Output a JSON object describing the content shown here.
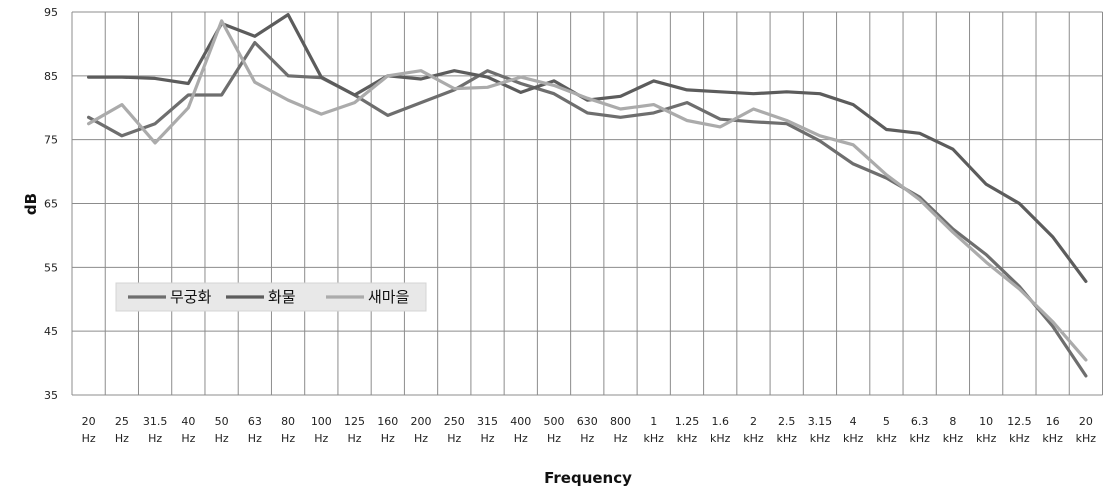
{
  "chart_data": {
    "type": "line",
    "xlabel": "Frequency",
    "ylabel": "dB",
    "ylim": [
      35,
      95
    ],
    "yticks": [
      35,
      45,
      55,
      65,
      75,
      85,
      95
    ],
    "grid": true,
    "legend_position": "lower-left",
    "categories": [
      [
        "20",
        "Hz"
      ],
      [
        "25",
        "Hz"
      ],
      [
        "31.5",
        "Hz"
      ],
      [
        "40",
        "Hz"
      ],
      [
        "50",
        "Hz"
      ],
      [
        "63",
        "Hz"
      ],
      [
        "80",
        "Hz"
      ],
      [
        "100",
        "Hz"
      ],
      [
        "125",
        "Hz"
      ],
      [
        "160",
        "Hz"
      ],
      [
        "200",
        "Hz"
      ],
      [
        "250",
        "Hz"
      ],
      [
        "315",
        "Hz"
      ],
      [
        "400",
        "Hz"
      ],
      [
        "500",
        "Hz"
      ],
      [
        "630",
        "Hz"
      ],
      [
        "800",
        "Hz"
      ],
      [
        "1",
        "kHz"
      ],
      [
        "1.25",
        "kHz"
      ],
      [
        "1.6",
        "kHz"
      ],
      [
        "2",
        "kHz"
      ],
      [
        "2.5",
        "kHz"
      ],
      [
        "3.15",
        "kHz"
      ],
      [
        "4",
        "kHz"
      ],
      [
        "5",
        "kHz"
      ],
      [
        "6.3",
        "kHz"
      ],
      [
        "8",
        "kHz"
      ],
      [
        "10",
        "kHz"
      ],
      [
        "12.5",
        "kHz"
      ],
      [
        "16",
        "kHz"
      ],
      [
        "20",
        "kHz"
      ]
    ],
    "series": [
      {
        "name": "무궁화",
        "color": "#6e6e6e",
        "values": [
          78.5,
          75.6,
          77.5,
          82,
          82,
          90.2,
          85,
          84.7,
          82,
          78.8,
          80.8,
          82.8,
          85.8,
          83.8,
          82.2,
          79.2,
          78.5,
          79.2,
          80.8,
          78.2,
          77.8,
          77.5,
          74.8,
          71.2,
          69,
          66,
          61,
          57,
          52,
          45.8,
          38
        ]
      },
      {
        "name": "화물",
        "color": "#5c5c5c",
        "values": [
          84.8,
          84.8,
          84.6,
          83.8,
          93.2,
          91.2,
          94.6,
          84.8,
          82,
          85,
          84.5,
          85.8,
          84.8,
          82.4,
          84.2,
          81.2,
          81.8,
          84.2,
          82.8,
          82.5,
          82.2,
          82.5,
          82.2,
          80.5,
          76.6,
          76,
          73.5,
          68,
          65,
          59.8,
          52.8
        ]
      },
      {
        "name": "새마을",
        "color": "#ababab",
        "values": [
          77.5,
          80.5,
          74.5,
          80,
          93.6,
          84,
          81.2,
          79,
          80.8,
          85,
          85.8,
          83,
          83.2,
          84.8,
          83.5,
          81.5,
          79.8,
          80.5,
          78,
          77,
          79.8,
          78,
          75.6,
          74.2,
          69.5,
          65.6,
          60.5,
          55.8,
          51.6,
          46.5,
          40.5
        ]
      }
    ]
  }
}
